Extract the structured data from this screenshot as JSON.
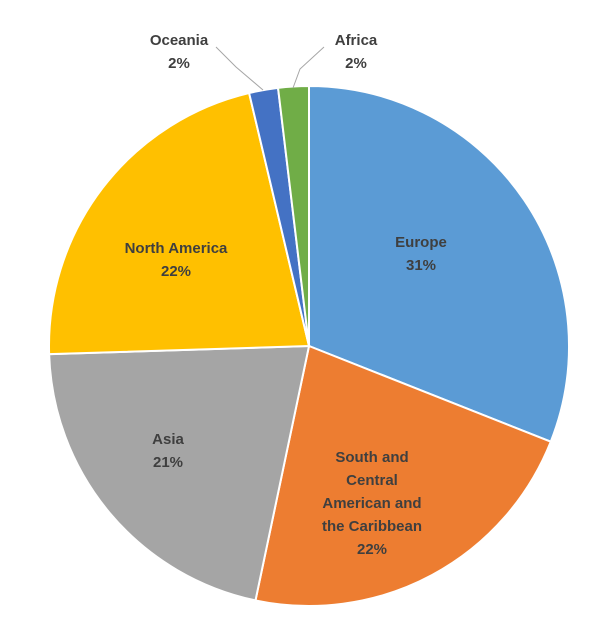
{
  "chart_data": {
    "type": "pie",
    "title": "",
    "slices": [
      {
        "label": "Europe",
        "value_label": "31%",
        "value": 31.0,
        "color": "#5b9bd5"
      },
      {
        "label": "South and Central American and the Caribbean",
        "label_lines": [
          "South and",
          "Central",
          "American and",
          "the Caribbean"
        ],
        "value_label": "22%",
        "value": 22.3,
        "color": "#ed7d31"
      },
      {
        "label": "Asia",
        "value_label": "21%",
        "value": 21.2,
        "color": "#a5a5a5"
      },
      {
        "label": "North America",
        "value_label": "22%",
        "value": 21.8,
        "color": "#ffc000"
      },
      {
        "label": "Oceania",
        "value_label": "2%",
        "value": 1.8,
        "color": "#4472c4"
      },
      {
        "label": "Africa",
        "value_label": "2%",
        "value": 1.9,
        "color": "#70ad47"
      }
    ],
    "legend": "none",
    "start_angle_deg": 0,
    "direction": "clockwise"
  }
}
